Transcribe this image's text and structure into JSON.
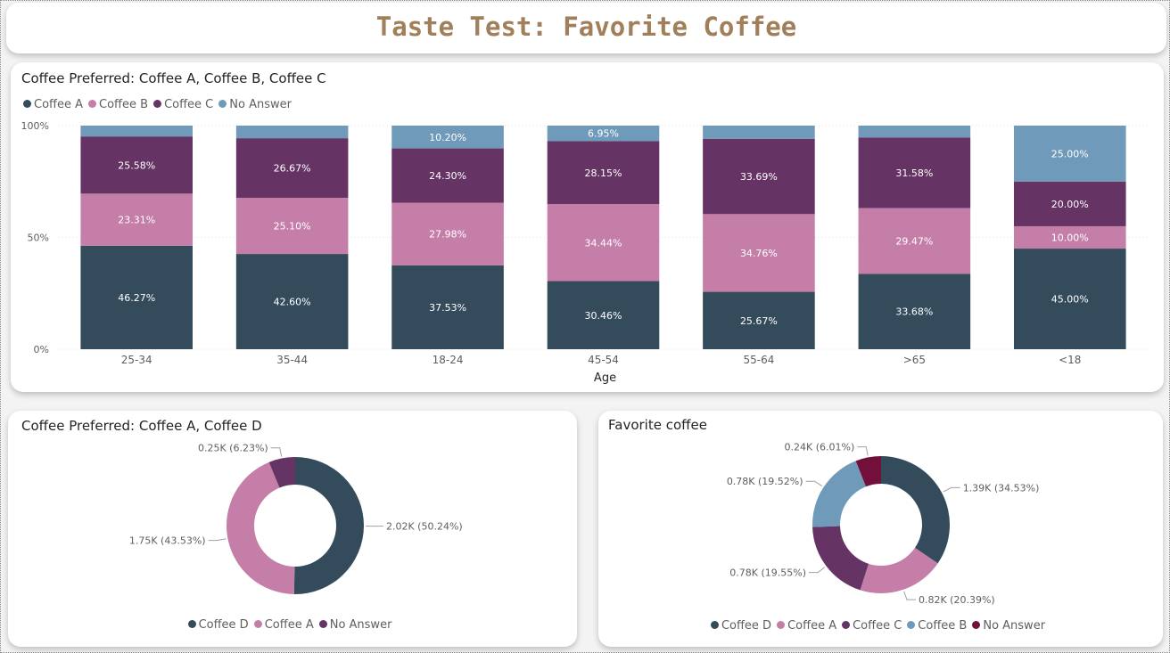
{
  "page": {
    "title": "Taste Test: Favorite Coffee"
  },
  "colors": {
    "coffee_a": "#c47ea8",
    "coffee_b": "#6f9ab9",
    "coffee_c": "#653465",
    "coffee_d": "#344b5c",
    "no_answer_bar": "#6f9ab9",
    "no_answer_purple": "#653465",
    "no_answer_maroon": "#720f3a",
    "title": "#a17f5a"
  },
  "chart_data": [
    {
      "type": "bar",
      "stacked": "100%",
      "title": "Coffee Preferred: Coffee A, Coffee B, Coffee C",
      "xlabel": "Age",
      "ylabel": "",
      "ylim": [
        0,
        100
      ],
      "yticks": [
        "0%",
        "50%",
        "100%"
      ],
      "legend_position": "top-left",
      "categories": [
        "25-34",
        "35-44",
        "18-24",
        "45-54",
        "55-64",
        ">65",
        "<18"
      ],
      "series": [
        {
          "name": "Coffee A",
          "values": [
            46.27,
            42.6,
            37.53,
            30.46,
            25.67,
            33.68,
            45.0
          ],
          "labels": [
            "46.27%",
            "42.60%",
            "37.53%",
            "30.46%",
            "25.67%",
            "33.68%",
            "45.00%"
          ]
        },
        {
          "name": "Coffee B",
          "values": [
            23.31,
            25.1,
            27.98,
            34.44,
            34.76,
            29.47,
            10.0
          ],
          "labels": [
            "23.31%",
            "25.10%",
            "27.98%",
            "34.44%",
            "34.76%",
            "29.47%",
            "10.00%"
          ]
        },
        {
          "name": "Coffee C",
          "values": [
            25.58,
            26.67,
            24.3,
            28.15,
            33.69,
            31.58,
            20.0
          ],
          "labels": [
            "25.58%",
            "26.67%",
            "24.30%",
            "28.15%",
            "33.69%",
            "31.58%",
            "20.00%"
          ]
        },
        {
          "name": "No Answer",
          "values": [
            4.84,
            5.63,
            10.2,
            6.95,
            5.88,
            5.27,
            25.0
          ],
          "labels": [
            "",
            "",
            "10.20%",
            "6.95%",
            "",
            "",
            "25.00%"
          ]
        }
      ]
    },
    {
      "type": "pie",
      "donut": true,
      "title": "Coffee Preferred: Coffee A, Coffee D",
      "legend_position": "bottom-center",
      "slices": [
        {
          "name": "Coffee D",
          "value": 50.24,
          "label": "2.02K (50.24%)"
        },
        {
          "name": "Coffee A",
          "value": 43.53,
          "label": "1.75K (43.53%)"
        },
        {
          "name": "No Answer",
          "value": 6.23,
          "label": "0.25K (6.23%)"
        }
      ]
    },
    {
      "type": "pie",
      "donut": true,
      "title": "Favorite coffee",
      "legend_position": "bottom-center",
      "slices": [
        {
          "name": "Coffee D",
          "value": 34.53,
          "label": "1.39K (34.53%)"
        },
        {
          "name": "Coffee A",
          "value": 20.39,
          "label": "0.82K (20.39%)"
        },
        {
          "name": "Coffee C",
          "value": 19.55,
          "label": "0.78K (19.55%)"
        },
        {
          "name": "Coffee B",
          "value": 19.52,
          "label": "0.78K (19.52%)"
        },
        {
          "name": "No Answer",
          "value": 6.01,
          "label": "0.24K (6.01%)"
        }
      ]
    }
  ]
}
